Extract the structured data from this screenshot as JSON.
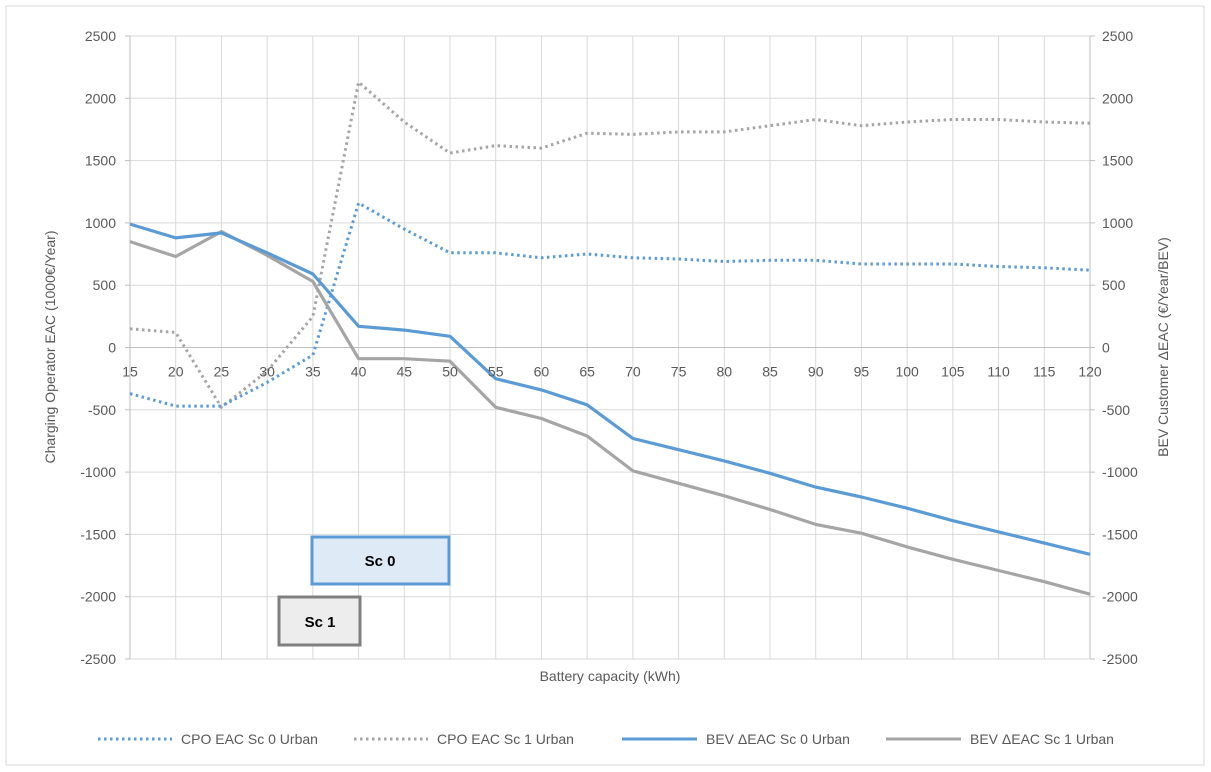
{
  "chart_data": {
    "type": "line",
    "title": "",
    "xlabel": "Battery capacity (kWh)",
    "ylabel_left": "Charging Operator EAC (1000€/Year)",
    "ylabel_right": "BEV Customer ΔEAC (€/Year/BEV)",
    "x": [
      15,
      20,
      25,
      30,
      35,
      40,
      45,
      50,
      55,
      60,
      65,
      70,
      75,
      80,
      85,
      90,
      95,
      100,
      105,
      110,
      115,
      120
    ],
    "x_tick_labels": [
      "15",
      "20",
      "25",
      "30",
      "35",
      "40",
      "45",
      "50",
      "55",
      "60",
      "65",
      "70",
      "75",
      "80",
      "85",
      "90",
      "95",
      "100",
      "105",
      "110",
      "115",
      "120"
    ],
    "ylim_left": [
      -2500,
      2500
    ],
    "ylim_right": [
      -2500,
      2500
    ],
    "y_tick_labels": [
      "2500",
      "2000",
      "1500",
      "1000",
      "500",
      "0",
      "-500",
      "-1000",
      "-1500",
      "-2000",
      "-2500"
    ],
    "grid": true,
    "legend_position": "bottom",
    "series": [
      {
        "name": "CPO EAC Sc 0 Urban",
        "axis": "left",
        "style": "dotted",
        "color": "#5B9BD5",
        "values": [
          -370,
          -470,
          -470,
          -280,
          -60,
          1160,
          950,
          760,
          760,
          720,
          750,
          720,
          710,
          690,
          700,
          700,
          670,
          670,
          670,
          650,
          640,
          620
        ]
      },
      {
        "name": "CPO EAC Sc 1 Urban",
        "axis": "left",
        "style": "dotted",
        "color": "#A5A5A5",
        "values": [
          150,
          120,
          -480,
          -190,
          250,
          2130,
          1810,
          1560,
          1620,
          1600,
          1720,
          1710,
          1730,
          1730,
          1780,
          1830,
          1780,
          1810,
          1830,
          1830,
          1810,
          1800
        ]
      },
      {
        "name": "BEV ΔEAC Sc 0 Urban",
        "axis": "right",
        "style": "solid",
        "color": "#5B9BD5",
        "values": [
          990,
          880,
          920,
          760,
          590,
          170,
          140,
          90,
          -250,
          -340,
          -460,
          -730,
          -820,
          -910,
          -1010,
          -1120,
          -1200,
          -1290,
          -1390,
          -1480,
          -1570,
          -1660
        ]
      },
      {
        "name": "BEV ΔEAC Sc 1 Urban",
        "axis": "right",
        "style": "solid",
        "color": "#A5A5A5",
        "values": [
          850,
          730,
          930,
          740,
          530,
          -90,
          -90,
          -110,
          -480,
          -570,
          -710,
          -990,
          -1090,
          -1190,
          -1300,
          -1420,
          -1490,
          -1600,
          -1700,
          -1790,
          -1880,
          -1980
        ]
      }
    ],
    "annotations": [
      {
        "text": "Sc 0",
        "fill": "#DEEBF7",
        "border": "#5B9BD5"
      },
      {
        "text": "Sc 1",
        "fill": "#EDEDED",
        "border": "#7F7F7F"
      }
    ]
  }
}
